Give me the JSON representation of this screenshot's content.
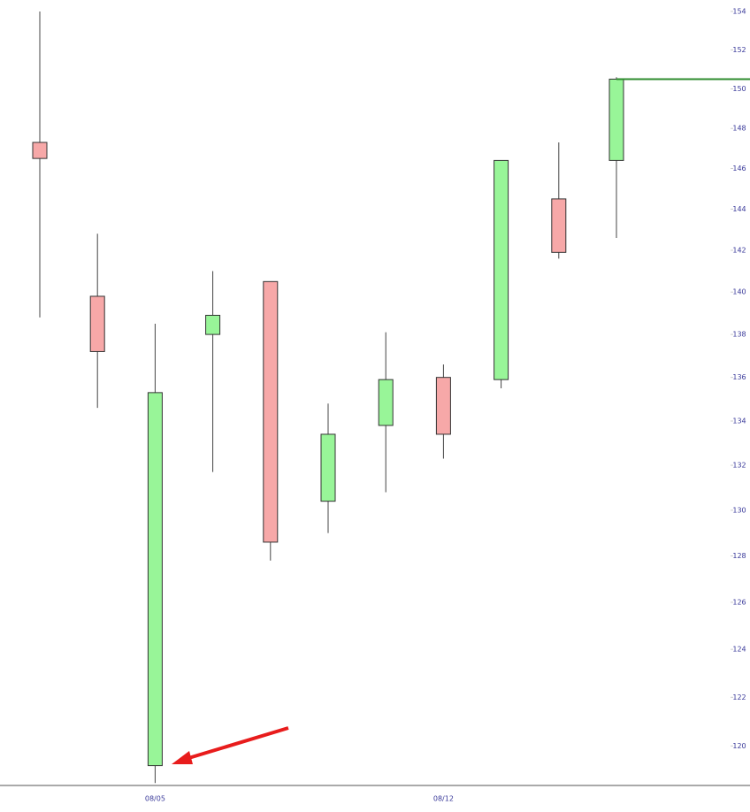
{
  "chart_data": {
    "type": "candlestick",
    "categories": [
      null,
      null,
      "08/05",
      null,
      null,
      null,
      null,
      "08/12",
      null,
      null,
      null
    ],
    "open": [
      147.3,
      139.8,
      119.2,
      138.0,
      140.5,
      130.4,
      133.8,
      136.0,
      135.9,
      144.5,
      146.4
    ],
    "high": [
      154.0,
      142.8,
      138.5,
      141.0,
      140.5,
      134.8,
      138.1,
      136.6,
      146.4,
      147.3,
      150.6
    ],
    "low": [
      138.8,
      134.6,
      118.5,
      131.7,
      127.8,
      129.0,
      130.8,
      132.3,
      135.5,
      141.6,
      142.6
    ],
    "close": [
      146.5,
      137.2,
      135.3,
      138.9,
      128.6,
      133.4,
      135.9,
      133.4,
      146.4,
      141.9,
      150.5
    ],
    "up_color": "#98f598",
    "down_color": "#f7a8a8",
    "level": 150.5,
    "level_color": "#2e8b2e",
    "ylim": [
      118.4,
      154.6
    ],
    "log_scale": true,
    "yticks": [
      120,
      122,
      124,
      126,
      128,
      130,
      132,
      134,
      136,
      138,
      140,
      142,
      144,
      146,
      148,
      150,
      152,
      154
    ]
  }
}
